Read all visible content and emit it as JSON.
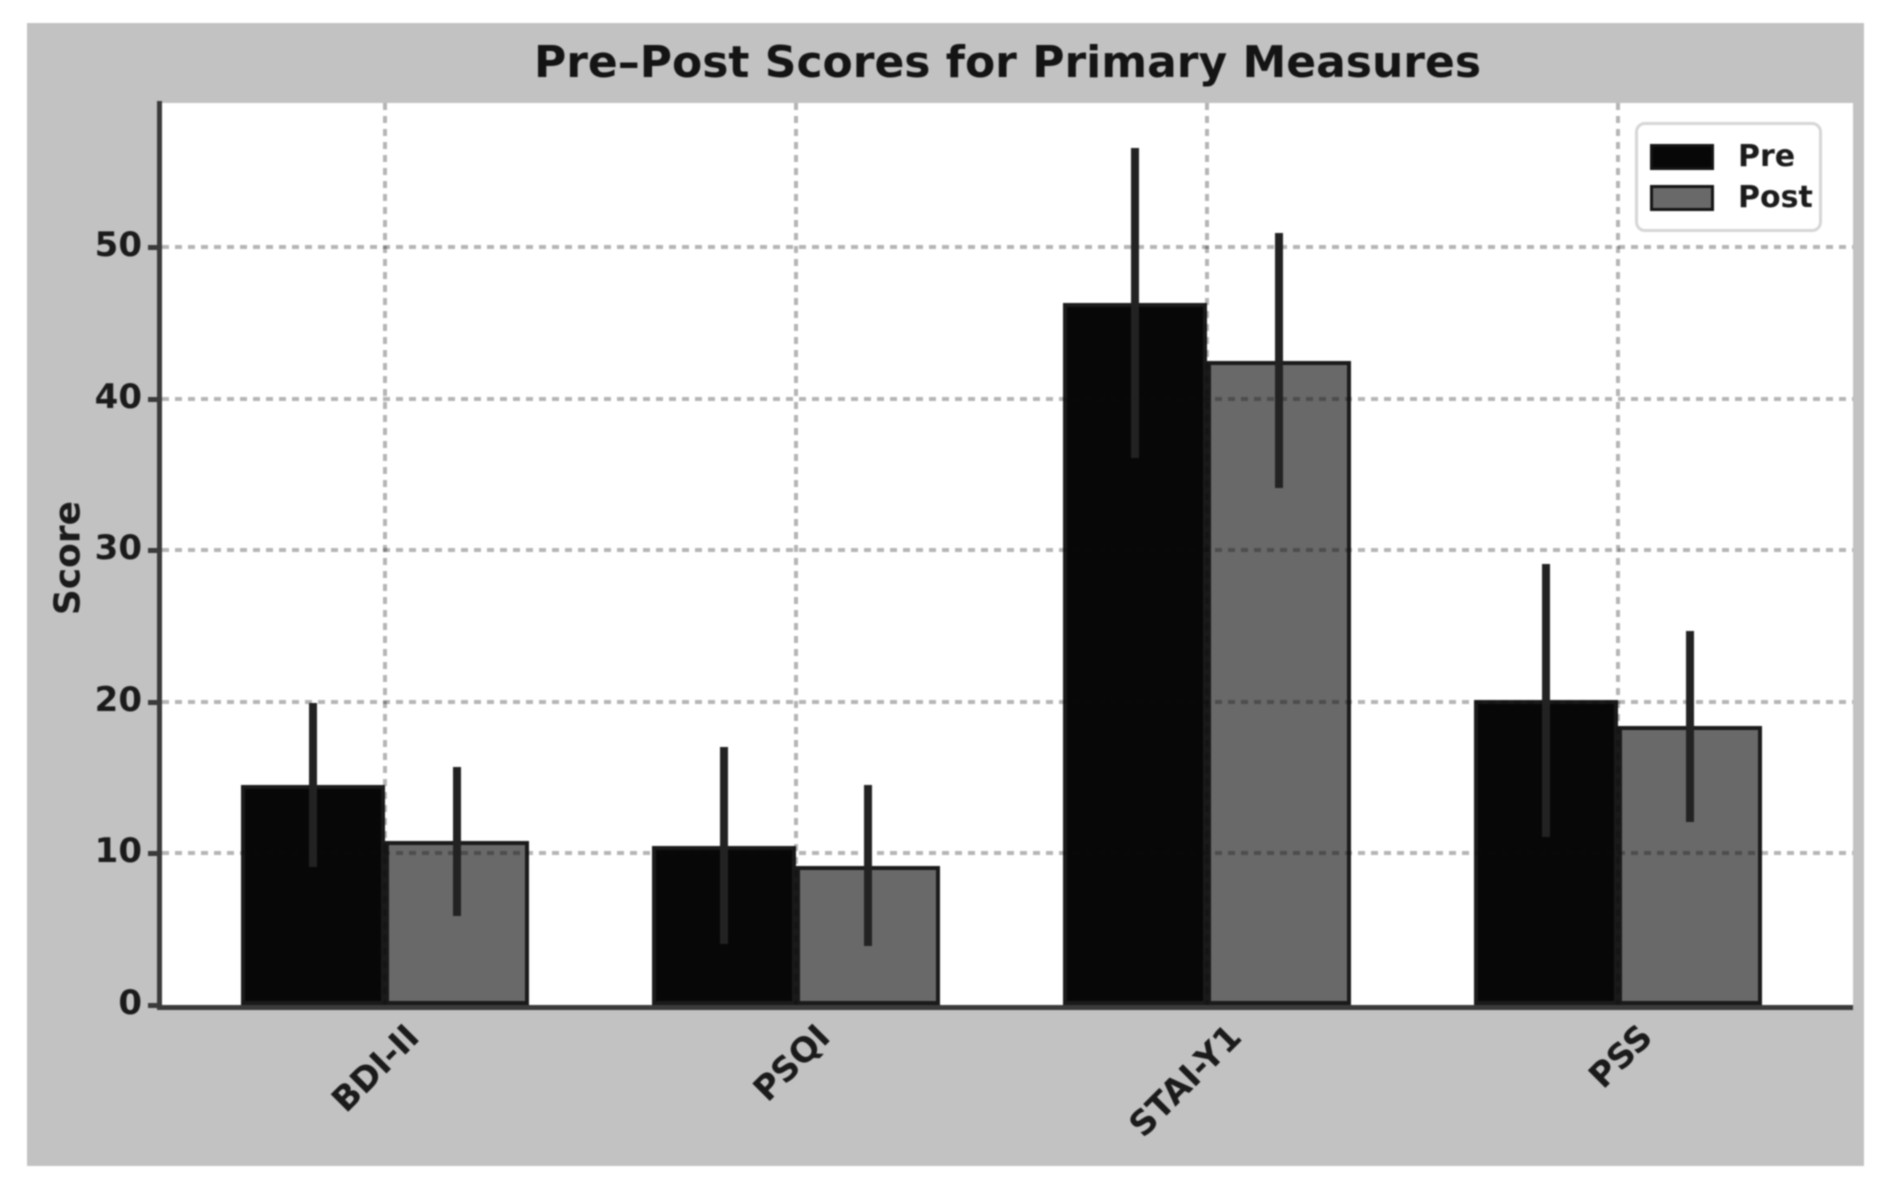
{
  "chart_data": {
    "type": "bar",
    "title": "Pre–Post Scores for Primary Measures",
    "xlabel": "",
    "ylabel": "Score",
    "categories": [
      "BDI-II",
      "PSQI",
      "STAI-Y1",
      "PSS"
    ],
    "series": [
      {
        "name": "Pre",
        "color": "#070707",
        "values": [
          14.5,
          10.5,
          46.3,
          20.1
        ],
        "errors": [
          5.4,
          6.5,
          10.2,
          9.0
        ]
      },
      {
        "name": "Post",
        "color": "#696969",
        "values": [
          10.8,
          9.2,
          42.5,
          18.4
        ],
        "errors": [
          4.9,
          5.3,
          8.4,
          6.3
        ]
      }
    ],
    "ylim": [
      0,
      59.5
    ],
    "xlim": [
      -0.5426,
      3.5714
    ],
    "yticks": [
      0,
      10,
      20,
      30,
      40,
      50
    ],
    "bar_width": 0.35,
    "grid": true,
    "grid_style": "dashed",
    "legend_position": "upper right",
    "error_bars": true,
    "colors": {
      "figure_background": "#c2c2c2",
      "plot_background": "#ffffff",
      "pre_bar": "#070707",
      "post_bar": "#696969",
      "bar_edge": "#1a1a1a",
      "error_bar": "#222222",
      "axis_spine": "#3a3a3a",
      "text": "#1b1b1b"
    }
  }
}
